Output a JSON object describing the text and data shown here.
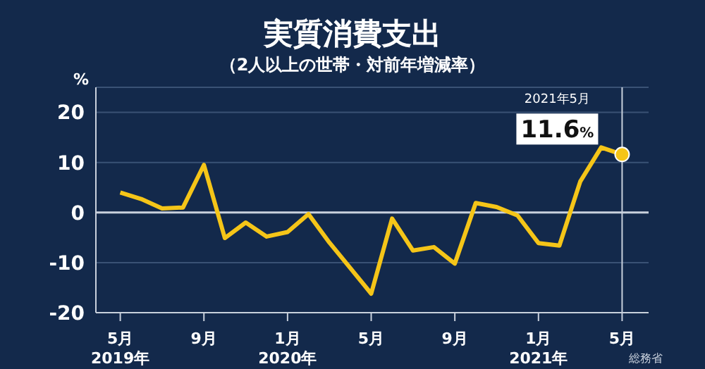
{
  "chart_data": {
    "type": "line",
    "title": "実質消費支出",
    "subtitle": "（2人以上の世帯・対前年増減率）",
    "ylabel": "%",
    "x": [
      "2019-05",
      "2019-06",
      "2019-07",
      "2019-08",
      "2019-09",
      "2019-10",
      "2019-11",
      "2019-12",
      "2020-01",
      "2020-02",
      "2020-03",
      "2020-04",
      "2020-05",
      "2020-06",
      "2020-07",
      "2020-08",
      "2020-09",
      "2020-10",
      "2020-11",
      "2020-12",
      "2021-01",
      "2021-02",
      "2021-03",
      "2021-04",
      "2021-05"
    ],
    "xlim": [
      "2019-03-26",
      "2021-06-09"
    ],
    "xticks": [
      {
        "value": "2019-05",
        "label": "5月\n2019年"
      },
      {
        "value": "2019-09",
        "label": "9月"
      },
      {
        "value": "2020-01",
        "label": "1月\n2020年"
      },
      {
        "value": "2020-05",
        "label": "5月"
      },
      {
        "value": "2020-09",
        "label": "9月"
      },
      {
        "value": "2021-01",
        "label": "1月\n2021年"
      },
      {
        "value": "2021-05",
        "label": "5月"
      }
    ],
    "series": [
      {
        "color": "#f5c518",
        "values": [
          4.0,
          2.7,
          0.8,
          1.0,
          9.5,
          -5.1,
          -2.0,
          -4.8,
          -3.9,
          -0.3,
          -6.0,
          -11.1,
          -16.2,
          -1.2,
          -7.6,
          -6.9,
          -10.2,
          1.9,
          1.1,
          -0.6,
          -6.1,
          -6.6,
          6.2,
          13.0,
          11.6
        ],
        "value_labels": [
          null,
          null,
          null,
          null,
          null,
          null,
          null,
          null,
          null,
          null,
          null,
          null,
          null,
          null,
          null,
          null,
          null,
          null,
          null,
          null,
          null,
          null,
          null,
          null,
          "11.6%"
        ]
      }
    ],
    "ylim": [
      -20,
      25
    ],
    "yticks": [
      -20,
      -10,
      0,
      10,
      20
    ],
    "grid": "y",
    "marker": "none",
    "line_style": "solid",
    "legend": false,
    "ref_lines": [
      {
        "axis": "x",
        "value": "2021-05",
        "label": "2021年5月",
        "color": "#c8d0dc"
      }
    ],
    "annotations": [
      "総務省"
    ]
  }
}
